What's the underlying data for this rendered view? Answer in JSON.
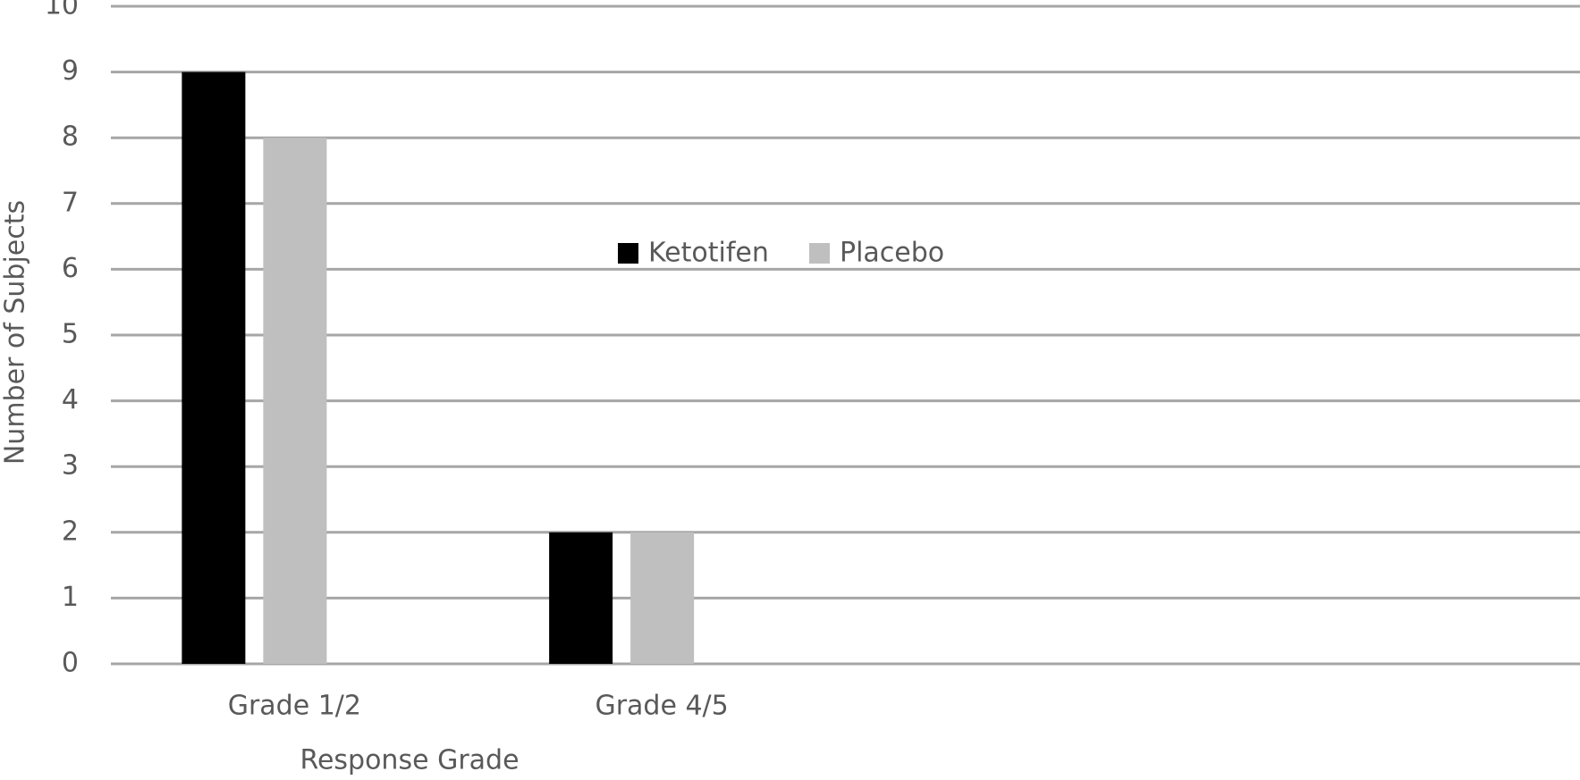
{
  "chart_data": {
    "type": "bar",
    "x_label": "Response Grade",
    "y_label": "Number of Subjects",
    "categories": [
      "Grade 1/2",
      "Grade 4/5",
      null,
      null
    ],
    "series": [
      {
        "name": "Ketotifen",
        "color": "#000000",
        "values": [
          9,
          2,
          null,
          null
        ]
      },
      {
        "name": "Placebo",
        "color": "#bfbfbf",
        "values": [
          8,
          2,
          null,
          null
        ]
      }
    ],
    "ylim": [
      0,
      10
    ],
    "yticks": [
      0,
      1,
      2,
      3,
      4,
      5,
      6,
      7,
      8,
      9,
      10
    ],
    "grid": true
  }
}
